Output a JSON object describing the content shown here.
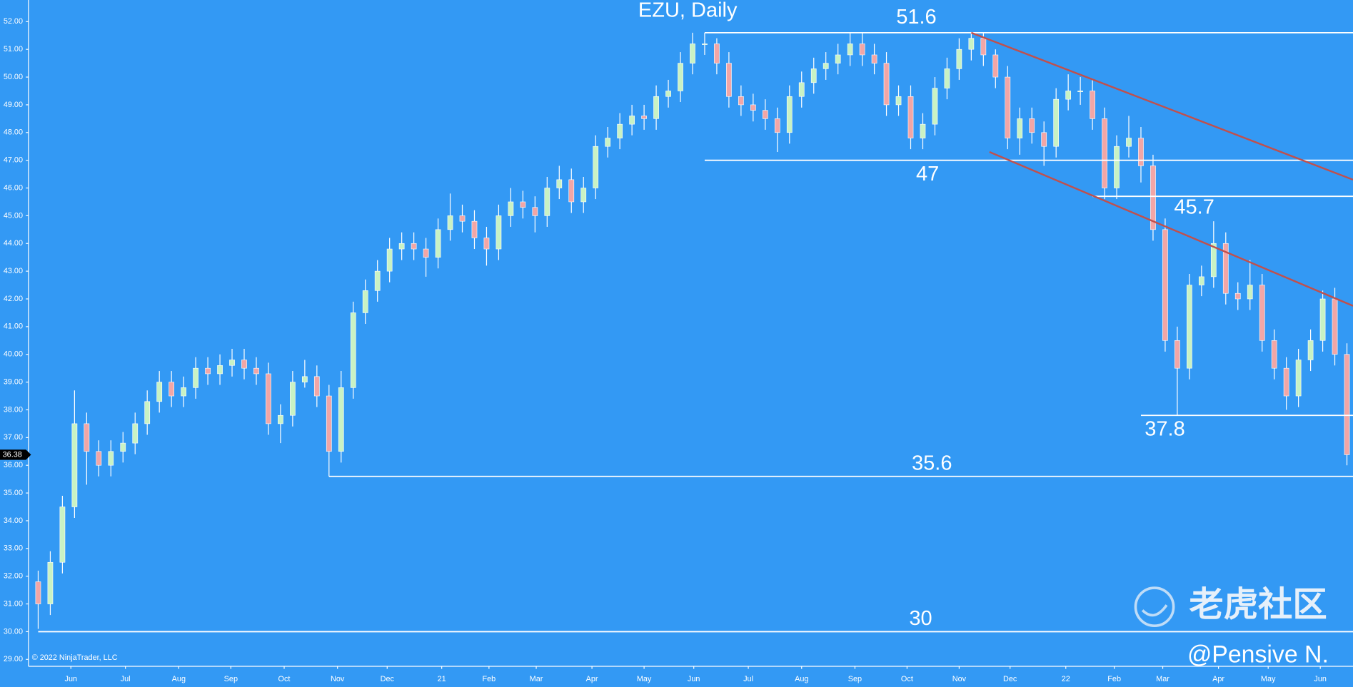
{
  "chart_data": {
    "type": "candlestick",
    "title": "EZU, Daily",
    "copyright": "© 2022 NinjaTrader, LLC",
    "watermark": "老虎社区",
    "author": "@Pensive N.",
    "up_color": "#c9f2c4",
    "down_color": "#f2a6a6",
    "wick_color": "#ffffff",
    "level_color": "#ffffff",
    "trend_color": "#c0504d",
    "background": "#3399f4",
    "open": [
      31.8,
      31.0,
      32.5,
      34.5,
      37.5,
      36.5,
      36.0,
      36.5,
      36.8,
      37.5,
      38.3,
      39.0,
      38.5,
      38.8,
      39.5,
      39.3,
      39.6,
      39.8,
      39.5,
      39.3,
      37.5,
      37.8,
      39.0,
      39.2,
      38.5,
      36.5,
      38.8,
      41.5,
      42.3,
      43.0,
      43.8,
      44.0,
      43.8,
      43.5,
      44.5,
      45.0,
      44.8,
      44.2,
      43.8,
      45.0,
      45.5,
      45.3,
      45.0,
      46.0,
      46.3,
      45.5,
      46.0,
      47.5,
      47.8,
      48.3,
      48.6,
      48.5,
      49.3,
      49.5,
      50.5,
      51.2,
      51.2,
      50.5,
      49.3,
      49.0,
      48.8,
      48.5,
      48.0,
      49.3,
      49.8,
      50.3,
      50.5,
      50.8,
      51.2,
      50.8,
      50.5,
      49.0,
      49.3,
      47.8,
      48.3,
      49.6,
      50.3,
      51.0,
      51.4,
      50.8,
      50.0,
      47.8,
      48.5,
      48.0,
      47.5,
      49.2,
      49.5,
      49.5,
      48.5,
      46.0,
      47.5,
      47.8,
      46.8,
      44.5,
      40.5,
      39.5,
      42.5,
      42.8,
      44.0,
      42.2,
      42.0,
      42.5,
      40.5,
      39.5,
      38.5,
      39.8,
      40.5,
      42.0,
      40.0
    ],
    "high": [
      32.2,
      32.9,
      34.9,
      38.7,
      37.9,
      36.9,
      36.9,
      37.2,
      37.9,
      38.7,
      39.4,
      39.4,
      39.2,
      39.9,
      39.9,
      40.0,
      40.2,
      40.2,
      39.9,
      39.7,
      38.2,
      39.4,
      39.8,
      39.6,
      38.9,
      39.4,
      41.9,
      42.7,
      43.4,
      44.2,
      44.4,
      44.4,
      44.2,
      44.9,
      45.8,
      45.4,
      45.2,
      44.6,
      45.4,
      46.0,
      45.9,
      45.7,
      46.4,
      46.8,
      46.7,
      46.4,
      47.9,
      48.2,
      48.7,
      49.0,
      49.0,
      49.7,
      49.9,
      50.9,
      51.6,
      51.6,
      51.4,
      50.9,
      49.7,
      49.4,
      49.2,
      48.9,
      49.7,
      50.2,
      50.7,
      50.9,
      51.2,
      51.6,
      51.6,
      51.2,
      50.9,
      49.7,
      49.7,
      48.7,
      50.0,
      50.7,
      51.4,
      51.6,
      51.6,
      51.0,
      50.4,
      48.9,
      48.9,
      48.4,
      49.6,
      50.1,
      50.0,
      49.9,
      48.9,
      47.9,
      48.6,
      48.2,
      47.2,
      44.9,
      41.0,
      42.9,
      43.2,
      44.8,
      44.4,
      42.6,
      43.4,
      42.9,
      40.9,
      39.9,
      40.2,
      40.9,
      42.3,
      42.4,
      40.4
    ],
    "low": [
      30.1,
      30.6,
      32.1,
      34.1,
      35.3,
      35.6,
      35.6,
      36.1,
      36.4,
      37.1,
      37.9,
      38.1,
      38.1,
      38.4,
      38.9,
      38.9,
      39.2,
      39.1,
      38.9,
      37.1,
      36.8,
      37.4,
      38.8,
      38.1,
      35.6,
      36.1,
      38.4,
      41.1,
      41.9,
      42.6,
      43.4,
      43.4,
      42.8,
      43.1,
      44.1,
      44.4,
      43.8,
      43.2,
      43.4,
      44.6,
      44.9,
      44.4,
      44.6,
      45.6,
      45.1,
      45.1,
      45.6,
      47.1,
      47.4,
      47.9,
      48.1,
      48.1,
      48.9,
      49.1,
      50.1,
      50.8,
      50.1,
      48.9,
      48.6,
      48.4,
      48.1,
      47.3,
      47.6,
      48.9,
      49.4,
      49.9,
      50.1,
      50.4,
      50.4,
      50.1,
      48.6,
      48.6,
      47.4,
      47.4,
      47.9,
      49.2,
      49.9,
      50.6,
      50.4,
      49.6,
      47.4,
      47.2,
      47.6,
      46.8,
      47.1,
      48.8,
      49.0,
      48.1,
      45.6,
      45.6,
      47.1,
      46.2,
      44.1,
      40.1,
      37.8,
      39.1,
      42.1,
      42.4,
      41.8,
      41.6,
      41.6,
      40.1,
      39.1,
      38.0,
      38.1,
      39.4,
      40.1,
      39.6,
      36.0
    ],
    "close": [
      31.0,
      32.5,
      34.5,
      37.5,
      36.5,
      36.0,
      36.5,
      36.8,
      37.5,
      38.3,
      39.0,
      38.5,
      38.8,
      39.5,
      39.3,
      39.6,
      39.8,
      39.5,
      39.3,
      37.5,
      37.8,
      39.0,
      39.2,
      38.5,
      36.5,
      38.8,
      41.5,
      42.3,
      43.0,
      43.8,
      44.0,
      43.8,
      43.5,
      44.5,
      45.0,
      44.8,
      44.2,
      43.8,
      45.0,
      45.5,
      45.3,
      45.0,
      46.0,
      46.3,
      45.5,
      46.0,
      47.5,
      47.8,
      48.3,
      48.6,
      48.5,
      49.3,
      49.5,
      50.5,
      51.2,
      51.2,
      50.5,
      49.3,
      49.0,
      48.8,
      48.5,
      48.0,
      49.3,
      49.8,
      50.3,
      50.5,
      50.8,
      51.2,
      50.8,
      50.5,
      49.0,
      49.3,
      47.8,
      48.3,
      49.6,
      50.3,
      51.0,
      51.4,
      50.8,
      50.0,
      47.8,
      48.5,
      48.0,
      47.5,
      49.2,
      49.5,
      49.5,
      48.5,
      46.0,
      47.5,
      47.8,
      46.8,
      44.5,
      40.5,
      39.5,
      42.5,
      42.8,
      44.0,
      42.2,
      42.0,
      42.5,
      40.5,
      39.5,
      38.5,
      39.8,
      40.5,
      42.0,
      40.0,
      36.38
    ],
    "levels": [
      {
        "value": 51.6,
        "start": 55
      },
      {
        "value": 47,
        "start": 55
      },
      {
        "value": 45.7,
        "start": 87
      },
      {
        "value": 37.8,
        "start": 91
      },
      {
        "value": 35.6,
        "start": 24
      },
      {
        "value": 30,
        "start": 0
      }
    ],
    "trendlines": [
      {
        "x": [
          77,
          108.5
        ],
        "y": [
          51.6,
          46.3
        ]
      },
      {
        "x": [
          78.5,
          108.5
        ],
        "y": [
          47.3,
          41.75
        ]
      }
    ],
    "xlim": [
      -0.8,
      108.5
    ],
    "ylim": [
      28.75,
      52.78
    ],
    "xticks": [
      {
        "value": 2.7,
        "label": "Jun"
      },
      {
        "value": 7.2,
        "label": "Jul"
      },
      {
        "value": 11.6,
        "label": "Aug"
      },
      {
        "value": 15.9,
        "label": "Sep"
      },
      {
        "value": 20.3,
        "label": "Oct"
      },
      {
        "value": 24.7,
        "label": "Nov"
      },
      {
        "value": 28.8,
        "label": "Dec"
      },
      {
        "value": 33.3,
        "label": "21"
      },
      {
        "value": 37.2,
        "label": "Feb"
      },
      {
        "value": 41.1,
        "label": "Mar"
      },
      {
        "value": 45.7,
        "label": "Apr"
      },
      {
        "value": 50.0,
        "label": "May"
      },
      {
        "value": 54.1,
        "label": "Jun"
      },
      {
        "value": 58.6,
        "label": "Jul"
      },
      {
        "value": 63.0,
        "label": "Aug"
      },
      {
        "value": 67.4,
        "label": "Sep"
      },
      {
        "value": 71.7,
        "label": "Oct"
      },
      {
        "value": 76.0,
        "label": "Nov"
      },
      {
        "value": 80.2,
        "label": "Dec"
      },
      {
        "value": 84.8,
        "label": "22"
      },
      {
        "value": 88.8,
        "label": "Feb"
      },
      {
        "value": 92.8,
        "label": "Mar"
      },
      {
        "value": 97.4,
        "label": "Apr"
      },
      {
        "value": 101.5,
        "label": "May"
      },
      {
        "value": 105.8,
        "label": "Jun"
      }
    ],
    "yticks": [
      {
        "value": 29,
        "label": "29.00"
      },
      {
        "value": 30,
        "label": "30.00"
      },
      {
        "value": 31,
        "label": "31.00"
      },
      {
        "value": 32,
        "label": "32.00"
      },
      {
        "value": 33,
        "label": "33.00"
      },
      {
        "value": 34,
        "label": "34.00"
      },
      {
        "value": 35,
        "label": "35.00"
      },
      {
        "value": 36,
        "label": "36.00"
      },
      {
        "value": 37,
        "label": "37.00"
      },
      {
        "value": 38,
        "label": "38.00"
      },
      {
        "value": 39,
        "label": "39.00"
      },
      {
        "value": 40,
        "label": "40.00"
      },
      {
        "value": 41,
        "label": "41.00"
      },
      {
        "value": 42,
        "label": "42.00"
      },
      {
        "value": 43,
        "label": "43.00"
      },
      {
        "value": 44,
        "label": "44.00"
      },
      {
        "value": 45,
        "label": "45.00"
      },
      {
        "value": 46,
        "label": "46.00"
      },
      {
        "value": 47,
        "label": "47.00"
      },
      {
        "value": 48,
        "label": "48.00"
      },
      {
        "value": 49,
        "label": "49.00"
      },
      {
        "value": 50,
        "label": "50.00"
      },
      {
        "value": 51,
        "label": "51.00"
      },
      {
        "value": 52,
        "label": "52.00"
      }
    ]
  }
}
